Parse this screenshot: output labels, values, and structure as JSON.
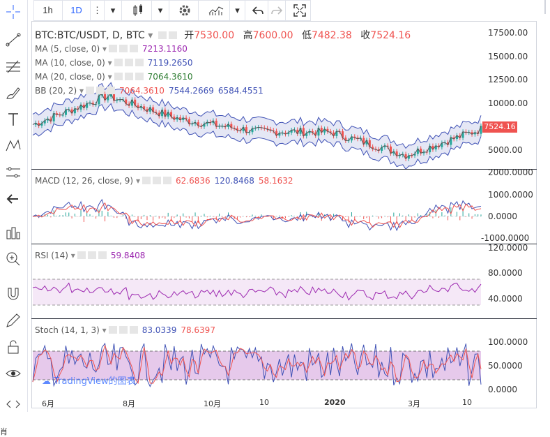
{
  "toolbar": {
    "interval_1h": "1h",
    "interval_1d": "1D"
  },
  "legend": {
    "main": {
      "symbol": "BTC:BTC/USDT, D, BTC",
      "open_label": "开",
      "open": "7530.00",
      "high_label": "高",
      "high": "7600.00",
      "low_label": "低",
      "low": "7482.38",
      "close_label": "收",
      "close": "7524.16"
    },
    "ma5": {
      "label": "MA (5, close, 0)",
      "value": "7213.1160"
    },
    "ma10": {
      "label": "MA (10, close, 0)",
      "value": "7119.2650"
    },
    "ma20": {
      "label": "MA (20, close, 0)",
      "value": "7064.3610"
    },
    "bb": {
      "label": "BB (20, 2)",
      "v1": "7064.3610",
      "v2": "7544.2669",
      "v3": "6584.4551"
    },
    "macd": {
      "label": "MACD (12, 26, close, 9)",
      "v1": "62.6836",
      "v2": "120.8468",
      "v3": "58.1632"
    },
    "rsi": {
      "label": "RSI (14)",
      "value": "59.8408"
    },
    "stoch": {
      "label": "Stoch (14, 1, 3)",
      "v1": "83.0339",
      "v2": "78.6397"
    }
  },
  "price_axis": [
    "17500.00",
    "15000.00",
    "12500.00",
    "10000.00",
    "7524.16",
    "5000.00"
  ],
  "macd_axis": [
    "2000.0000",
    "1000.0000",
    "0.0000",
    "-1000.0000"
  ],
  "rsi_axis": [
    "120.0000",
    "80.0000",
    "40.0000"
  ],
  "stoch_axis": [
    "100.0000",
    "50.0000",
    "0.0000"
  ],
  "x_axis": [
    "6月",
    "8月",
    "10月",
    "10",
    "2020",
    "3月",
    "10"
  ],
  "last_price": "7524.16",
  "brand": "TradingView的图表",
  "corner_text": "肖",
  "colors": {
    "up": "#26a69a",
    "down": "#ef5350",
    "bb": "#3f51b5",
    "rsi": "#9c27b0",
    "stoch": "#9c27b0"
  },
  "chart_data": {
    "type": "line",
    "series": [
      {
        "name": "BTC:BTC/USDT",
        "x": [
          "6月",
          "8月",
          "10月",
          "10",
          "2020",
          "3月",
          "10"
        ],
        "values": [
          8000,
          11000,
          8500,
          7300,
          7200,
          4800,
          7524.16
        ]
      }
    ],
    "ylim": [
      3500,
      18500
    ]
  }
}
